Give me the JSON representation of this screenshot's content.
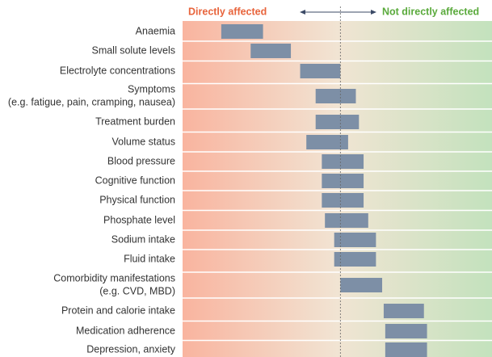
{
  "chart_data": {
    "type": "range_bar",
    "left_label": "Directly affected",
    "right_label": "Not directly affected",
    "left_color": "#e8643c",
    "right_color": "#5aaa3c",
    "color": "#7d8fa6",
    "xlim": [
      0,
      100
    ],
    "center": 51,
    "categories": [
      "Anaemia",
      "Small solute levels",
      "Electrolyte concentrations",
      {
        "label": "Symptoms",
        "note": "(e.g. fatigue, pain, cramping, nausea)"
      },
      "Treatment burden",
      "Volume status",
      "Blood pressure",
      "Cognitive function",
      "Physical function",
      "Phosphate level",
      "Sodium intake",
      "Fluid intake",
      {
        "label": "Comorbidity manifestations",
        "note": "(e.g. CVD, MBD)"
      },
      "Protein and calorie intake",
      "Medication adherence",
      "Depression, anxiety"
    ],
    "start": [
      12.5,
      22,
      38,
      43,
      43,
      40,
      45,
      45,
      45,
      46,
      49,
      49,
      51,
      65,
      65.5,
      65.5
    ],
    "end": [
      26,
      35,
      51,
      56,
      57,
      53.5,
      58.5,
      58.5,
      58.5,
      60,
      62.5,
      62.5,
      64.5,
      78,
      79,
      79
    ]
  }
}
